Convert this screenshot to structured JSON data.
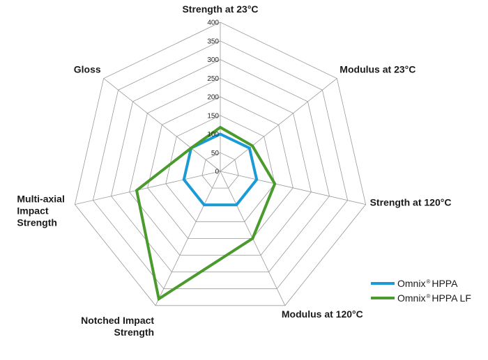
{
  "chart_data": {
    "type": "radar",
    "axes": [
      {
        "label_lines": [
          "Strength at 23°C"
        ],
        "anchor": "middle"
      },
      {
        "label_lines": [
          "Modulus at 23°C"
        ],
        "anchor": "start"
      },
      {
        "label_lines": [
          "Strength at 120°C"
        ],
        "anchor": "start"
      },
      {
        "label_lines": [
          "Modulus at 120°C"
        ],
        "anchor": "start"
      },
      {
        "label_lines": [
          "Notched Impact",
          "Strength"
        ],
        "anchor": "end"
      },
      {
        "label_lines": [
          "Multi-axial",
          "Impact",
          "Strength"
        ],
        "anchor": "start"
      },
      {
        "label_lines": [
          "Gloss"
        ],
        "anchor": "end"
      }
    ],
    "scale": {
      "min": 0,
      "max": 400,
      "ticks": [
        0,
        50,
        100,
        150,
        200,
        250,
        300,
        350,
        400
      ]
    },
    "series": [
      {
        "name": "Omnix",
        "name_suffix": "HPPA",
        "color": "#1a9ad6",
        "values": [
          100,
          100,
          100,
          100,
          100,
          100,
          100
        ]
      },
      {
        "name": "Omnix",
        "name_suffix": "HPPA LF",
        "color": "#4b9a2e",
        "values": [
          118,
          110,
          150,
          200,
          380,
          230,
          100
        ]
      }
    ],
    "legend_position": "bottom-right",
    "grid": true
  }
}
